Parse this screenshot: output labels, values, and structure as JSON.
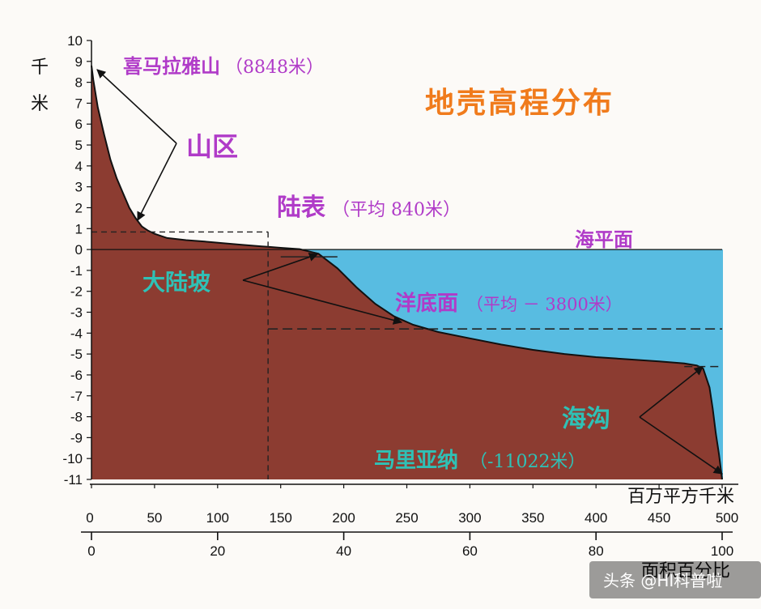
{
  "chart_data": {
    "type": "area",
    "title": "地壳高程分布",
    "ylabel": "千米",
    "ylim": [
      -11,
      10
    ],
    "yticks": [
      10,
      9,
      8,
      7,
      6,
      5,
      4,
      3,
      2,
      1,
      0,
      -1,
      -2,
      -3,
      -4,
      -5,
      -6,
      -7,
      -8,
      -9,
      -10,
      -11
    ],
    "x_area_label": "百万平方千米",
    "x_area_ticks": [
      0,
      50,
      100,
      150,
      200,
      250,
      300,
      350,
      400,
      450,
      500
    ],
    "x_percent_label": "面积百分比",
    "x_percent_ticks": [
      0,
      20,
      40,
      60,
      80,
      100
    ],
    "xlim": [
      0,
      100
    ],
    "curve": {
      "x": [
        0,
        0.3,
        1,
        2,
        3,
        4,
        5,
        6,
        7,
        8,
        9,
        10,
        12,
        15,
        18,
        21,
        24,
        27,
        28,
        30,
        33,
        36,
        39,
        42,
        45,
        48,
        51,
        55,
        60,
        65,
        70,
        75,
        80,
        85,
        90,
        94,
        96,
        97,
        98,
        98.5,
        99,
        99.5,
        100
      ],
      "y": [
        8.8,
        8.1,
        6.8,
        5.5,
        4.3,
        3.4,
        2.7,
        2.0,
        1.5,
        1.1,
        0.9,
        0.75,
        0.55,
        0.45,
        0.38,
        0.3,
        0.22,
        0.15,
        0.13,
        0.08,
        0.02,
        -0.2,
        -0.9,
        -1.8,
        -2.6,
        -3.2,
        -3.6,
        -3.95,
        -4.25,
        -4.55,
        -4.8,
        -5.0,
        -5.15,
        -5.25,
        -5.35,
        -5.45,
        -5.55,
        -5.7,
        -6.6,
        -7.6,
        -8.8,
        -9.8,
        -11
      ]
    },
    "sea_level": 0,
    "ocean_floor_mean": -3.8,
    "land_mean": 0.84,
    "annotations": {
      "everest": {
        "name": "喜马拉雅山",
        "value": "（8848米）"
      },
      "mountains": "山区",
      "land": {
        "name": "陆表",
        "value": "（平均 840米）"
      },
      "sea_level": "海平面",
      "slope": "大陆坡",
      "ocean_floor": {
        "name": "洋底面",
        "value": "（平均 － 3800米）"
      },
      "trench": "海沟",
      "mariana": {
        "name": "马里亚纳",
        "value": "（-11022米）"
      }
    },
    "colors": {
      "crust": "#8c3c31",
      "ocean": "#58bce1",
      "background": "#fcfaf7"
    }
  },
  "watermark": "头条 @HI科普啦"
}
